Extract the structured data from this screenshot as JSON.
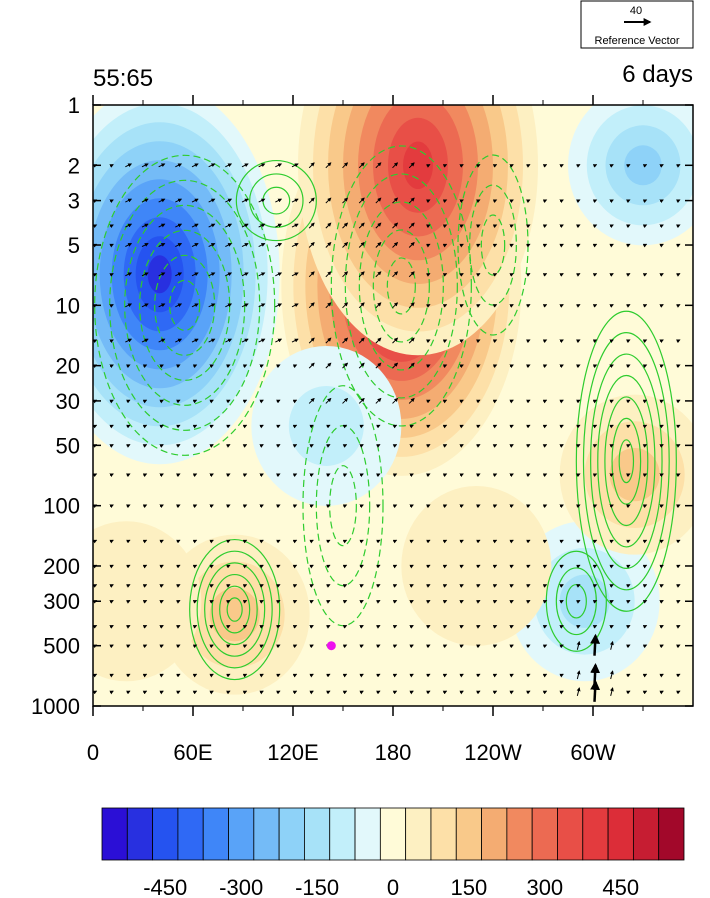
{
  "chart_data": {
    "type": "heatmap",
    "title_left": "55:65",
    "title_right": "6 days",
    "reference_vector": {
      "magnitude": "40",
      "label": "Reference Vector"
    },
    "x_ticks": [
      "0",
      "60E",
      "120E",
      "180",
      "120W",
      "60W"
    ],
    "x_tick_values": [
      0,
      60,
      120,
      180,
      240,
      300
    ],
    "x_range": [
      0,
      360
    ],
    "y_ticks": [
      "1",
      "2",
      "3",
      "5",
      "10",
      "20",
      "30",
      "50",
      "100",
      "200",
      "300",
      "500",
      "1000"
    ],
    "y_tick_values": [
      1,
      2,
      3,
      5,
      10,
      20,
      30,
      50,
      100,
      200,
      300,
      500,
      1000
    ],
    "y_range": [
      1,
      1000
    ],
    "y_scale": "log, inverted (pressure)",
    "colorbar": {
      "levels": [
        -550,
        -500,
        -450,
        -400,
        -350,
        -300,
        -250,
        -200,
        -150,
        -100,
        -50,
        0,
        50,
        100,
        150,
        200,
        250,
        300,
        350,
        400,
        450,
        500,
        550
      ],
      "tick_labels": [
        "-450",
        "-300",
        "-150",
        "0",
        "150",
        "300",
        "450"
      ],
      "tick_values": [
        -450,
        -300,
        -150,
        0,
        150,
        300,
        450
      ],
      "colors": [
        "#2b0fd6",
        "#2830e0",
        "#2553f0",
        "#2f69f5",
        "#3f86f8",
        "#59a3f8",
        "#74bbf7",
        "#8ed2f8",
        "#a7e2f8",
        "#c2effa",
        "#e2f8fb",
        "#fffbd8",
        "#fdf0c2",
        "#fde0a8",
        "#f9c98a",
        "#f4ac72",
        "#f1895f",
        "#ec6a52",
        "#e84f47",
        "#e33b3e",
        "#dc2d38",
        "#c61d32",
        "#a2082a"
      ]
    },
    "shaded_anomalies": [
      {
        "lon": 40,
        "p": 7,
        "value": -500
      },
      {
        "lon": 185,
        "p": 8,
        "value": 520
      },
      {
        "lon": 195,
        "p": 2,
        "value": 420
      },
      {
        "lon": 85,
        "p": 350,
        "value": 150
      },
      {
        "lon": 295,
        "p": 300,
        "value": -170
      },
      {
        "lon": 325,
        "p": 70,
        "value": 170
      },
      {
        "lon": 140,
        "p": 40,
        "value": -120
      },
      {
        "lon": 330,
        "p": 2,
        "value": -180
      },
      {
        "lon": 230,
        "p": 200,
        "value": 60
      },
      {
        "lon": 20,
        "p": 300,
        "value": 60
      }
    ],
    "marker": {
      "lon": 143,
      "p": 500,
      "color": "#ee11ee"
    },
    "contour_color": "#2ecc2e",
    "vector_color": "#000000"
  }
}
